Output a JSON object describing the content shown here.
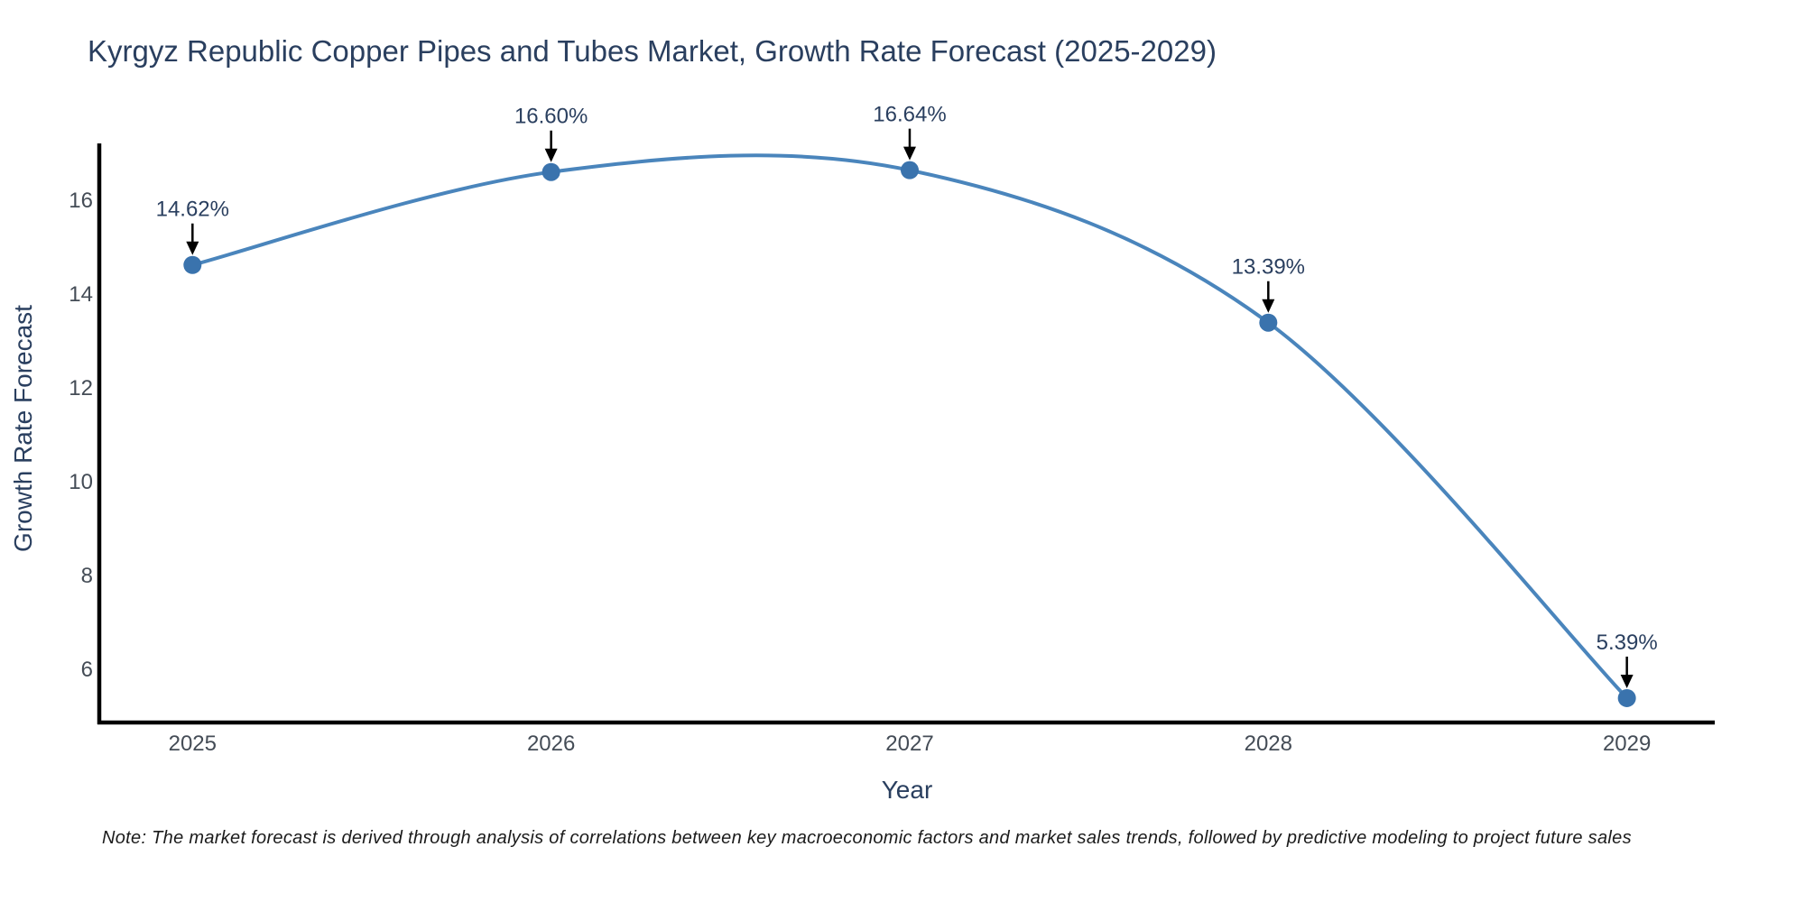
{
  "chart_data": {
    "type": "line",
    "title": "Kyrgyz Republic Copper Pipes and Tubes Market, Growth Rate Forecast (2025-2029)",
    "xlabel": "Year",
    "ylabel": "Growth Rate Forecast",
    "x": [
      2025,
      2026,
      2027,
      2028,
      2029
    ],
    "series": [
      {
        "name": "Growth Rate Forecast",
        "values": [
          14.62,
          16.6,
          16.64,
          13.39,
          5.39
        ],
        "point_labels": [
          "14.62%",
          "16.60%",
          "16.64%",
          "13.39%",
          "5.39%"
        ]
      }
    ],
    "yticks": [
      6,
      8,
      10,
      12,
      14,
      16
    ],
    "xticks": [
      "2025",
      "2026",
      "2027",
      "2028",
      "2029"
    ],
    "ylim": [
      4.87,
      17.21
    ],
    "xlim": [
      2024.74,
      2029.245
    ],
    "grid": false,
    "legend": false,
    "line_shape": "spline",
    "colors": {
      "line": "#4a85bc",
      "marker": "#3a73ad",
      "axis": "#000000",
      "title_text": "#2a3f5f",
      "tick_text": "#444c56",
      "annotation_text": "#2a3f5f",
      "annotation_arrow": "#000000",
      "background": "#ffffff"
    }
  },
  "note": "Note: The market forecast is derived through analysis of correlations between key macroeconomic factors and market sales trends, followed by predictive modeling to project future sales"
}
